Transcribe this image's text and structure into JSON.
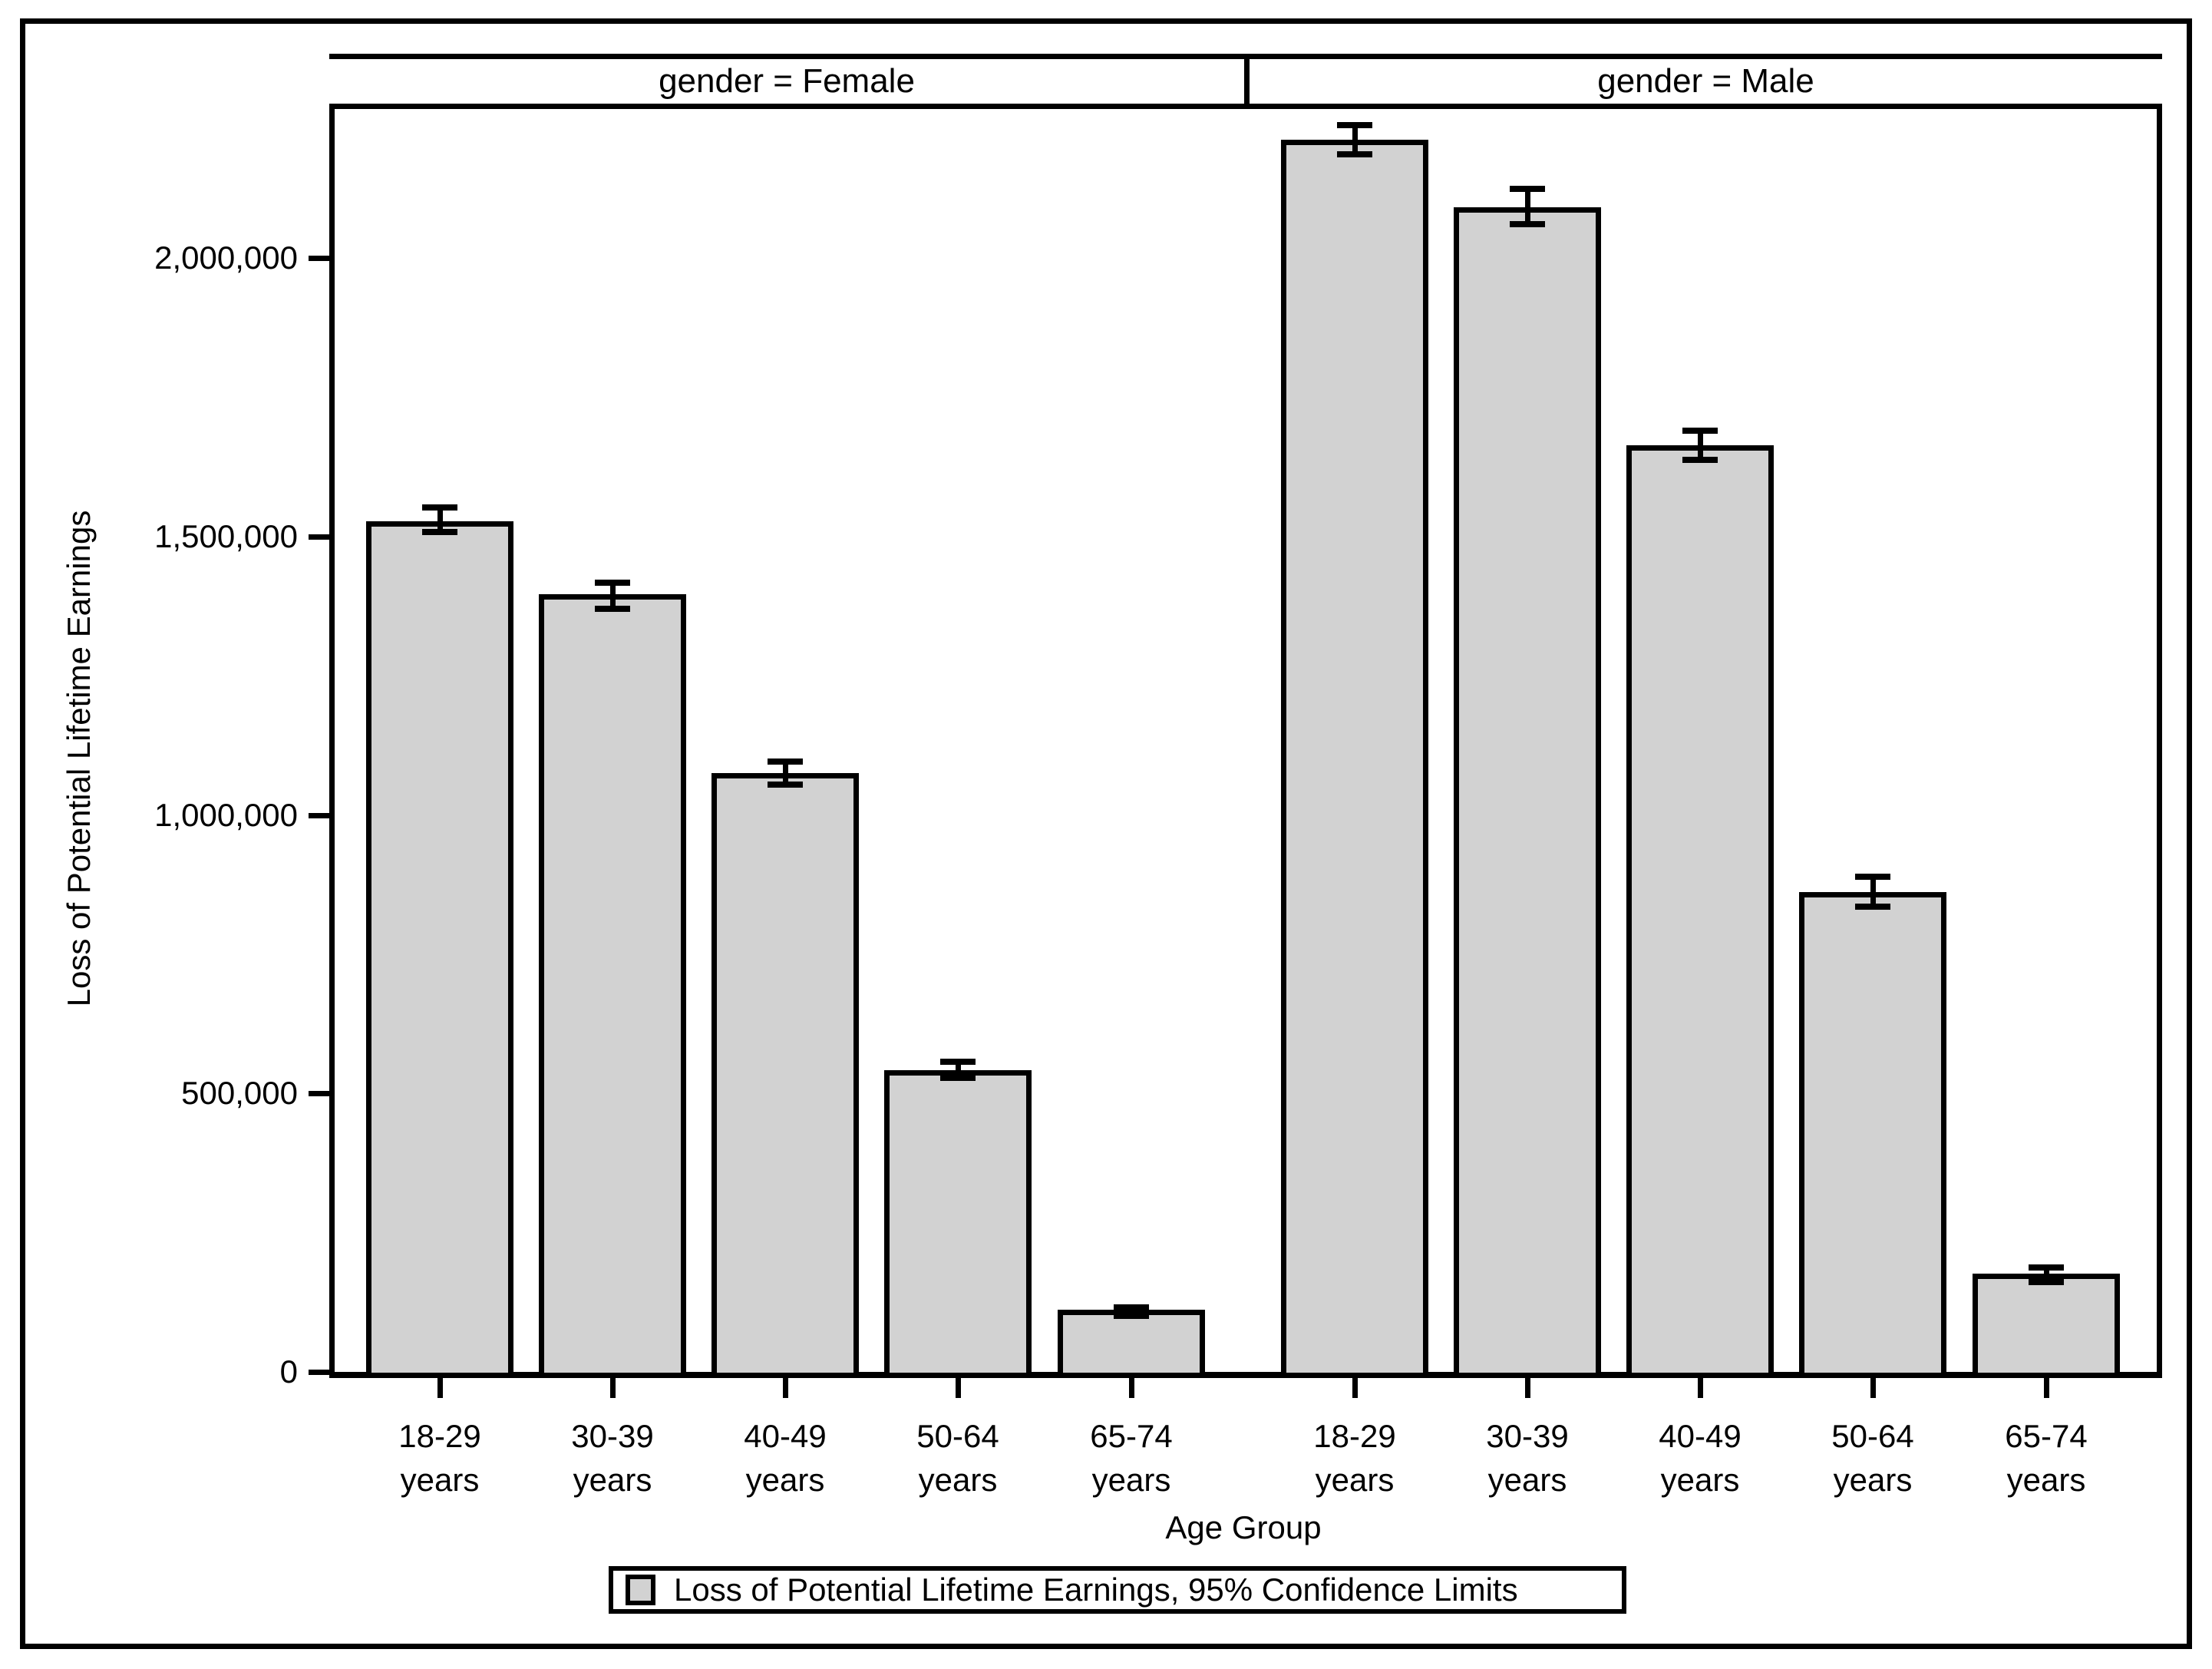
{
  "chart_data": {
    "type": "bar",
    "facets": [
      {
        "label": "gender = Female",
        "values": [
          1527000,
          1396000,
          1076000,
          542000,
          111000
        ],
        "ci_lower": [
          1508000,
          1370000,
          1055000,
          528000,
          100000
        ],
        "ci_upper": [
          1553000,
          1417000,
          1096000,
          557000,
          116000
        ]
      },
      {
        "label": "gender = Male",
        "values": [
          2213000,
          2091000,
          1664000,
          862000,
          177000
        ],
        "ci_lower": [
          2187000,
          2061000,
          1638000,
          836000,
          162000
        ],
        "ci_upper": [
          2239000,
          2124000,
          1691000,
          889000,
          187000
        ]
      }
    ],
    "categories": [
      "18-29",
      "30-39",
      "40-49",
      "50-64",
      "65-74"
    ],
    "category_suffix": "years",
    "xlabel": "Age Group",
    "ylabel": "Loss of Potential Lifetime Earnings",
    "yticks": [
      0,
      500000,
      1000000,
      1500000,
      2000000
    ],
    "ytick_labels": [
      "0",
      "500,000",
      "1,000,000",
      "1,500,000",
      "2,000,000"
    ],
    "ylim": [
      0,
      2268000
    ],
    "grid": false,
    "legend": {
      "label": "Loss of Potential Lifetime Earnings, 95% Confidence Limits",
      "position": "bottom"
    },
    "colors": {
      "bar_fill": "#d2d2d2",
      "bar_stroke": "#000000",
      "background": "#ffffff",
      "text": "#000000"
    }
  }
}
